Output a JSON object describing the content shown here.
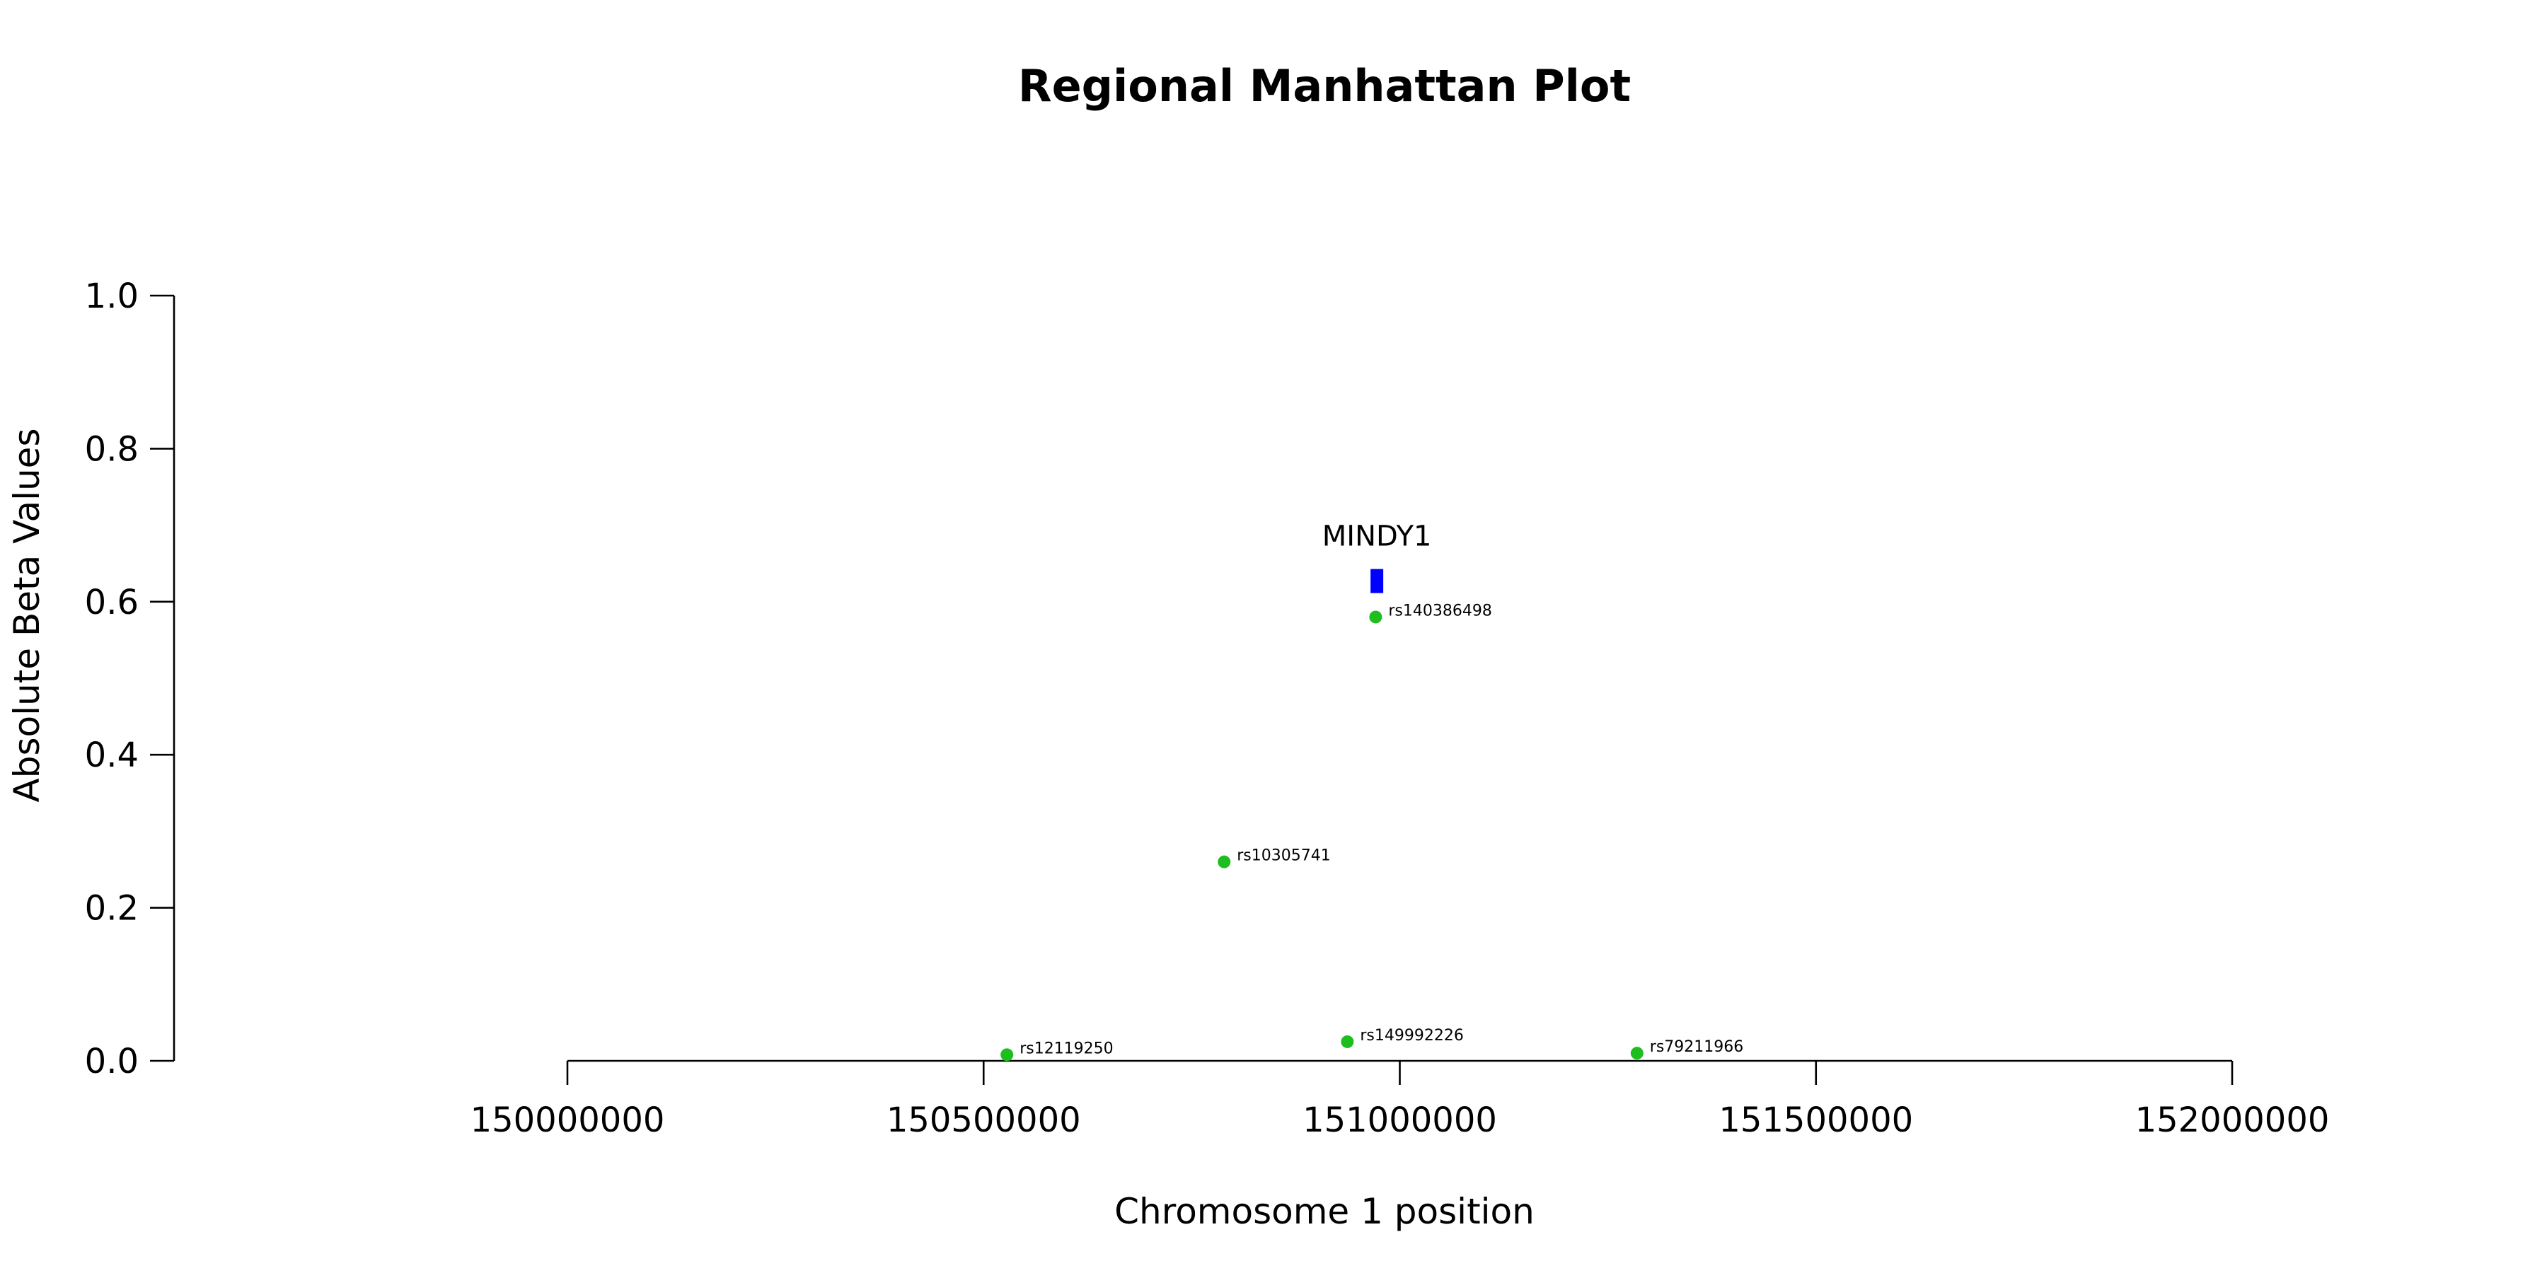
{
  "chart_data": {
    "type": "scatter",
    "title": "Regional Manhattan Plot",
    "xlabel": "Chromosome 1 position",
    "ylabel": "Absolute Beta Values",
    "xlim": [
      150000000,
      152000000
    ],
    "ylim": [
      0,
      1
    ],
    "x_ticks": [
      {
        "value": 150000000,
        "label": "150000000"
      },
      {
        "value": 150500000,
        "label": "150500000"
      },
      {
        "value": 151000000,
        "label": "151000000"
      },
      {
        "value": 151500000,
        "label": "151500000"
      },
      {
        "value": 152000000,
        "label": "152000000"
      }
    ],
    "y_ticks": [
      {
        "value": 0.0,
        "label": "0.0"
      },
      {
        "value": 0.2,
        "label": "0.2"
      },
      {
        "value": 0.4,
        "label": "0.4"
      },
      {
        "value": 0.6,
        "label": "0.6"
      },
      {
        "value": 0.8,
        "label": "0.8"
      },
      {
        "value": 1.0,
        "label": "1.0"
      }
    ],
    "points": [
      {
        "label": "rs12119250",
        "x": 150528000,
        "y": 0.008
      },
      {
        "label": "rs10305741",
        "x": 150789000,
        "y": 0.26
      },
      {
        "label": "rs149992226",
        "x": 150937000,
        "y": 0.025
      },
      {
        "label": "rs140386498",
        "x": 150971000,
        "y": 0.58
      },
      {
        "label": "rs79211966",
        "x": 151285000,
        "y": 0.01
      }
    ],
    "genes": [
      {
        "name": "MINDY1",
        "x_start": 150965000,
        "x_end": 150980000,
        "y": 0.627
      }
    ],
    "point_color": "#1DBE1D",
    "gene_color": "#0000FF",
    "grid": false
  }
}
